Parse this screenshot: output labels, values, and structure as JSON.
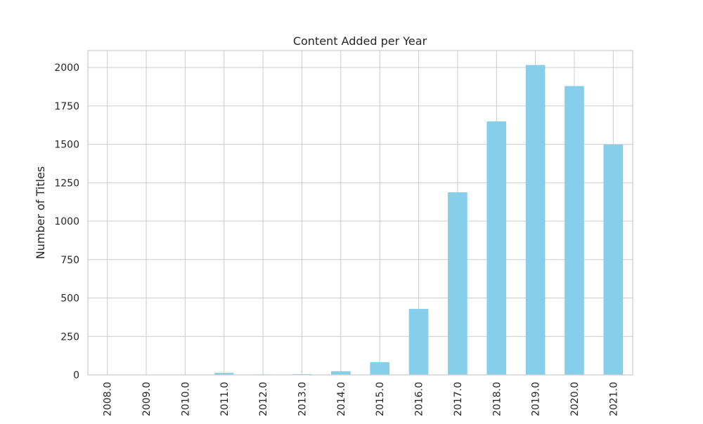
{
  "chart_data": {
    "type": "bar",
    "title": "Content Added per Year",
    "xlabel": "",
    "ylabel": "Number of Titles",
    "categories": [
      "2008.0",
      "2009.0",
      "2010.0",
      "2011.0",
      "2012.0",
      "2013.0",
      "2014.0",
      "2015.0",
      "2016.0",
      "2017.0",
      "2018.0",
      "2019.0",
      "2020.0",
      "2021.0"
    ],
    "values": [
      2,
      2,
      1,
      13,
      3,
      5,
      24,
      82,
      429,
      1188,
      1649,
      2016,
      1879,
      1498
    ],
    "ylim": [
      0,
      2110
    ],
    "yticks": [
      0,
      250,
      500,
      750,
      1000,
      1250,
      1500,
      1750,
      2000
    ],
    "grid": true,
    "legend": "none",
    "colors": {
      "bar": "#87ceeb",
      "grid": "#cccccc",
      "axis": "#cccccc",
      "text": "#262626"
    }
  }
}
